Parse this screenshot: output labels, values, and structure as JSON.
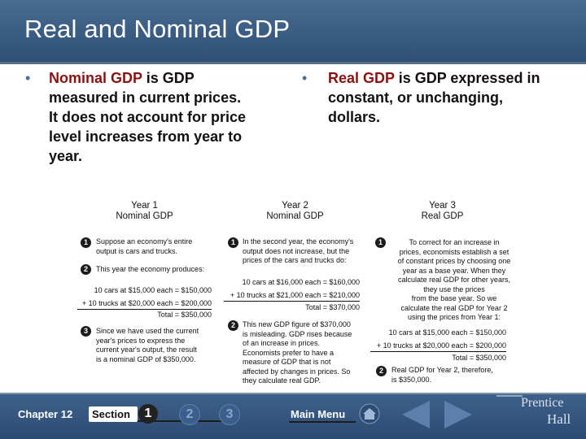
{
  "header": {
    "title": "Real and Nominal GDP"
  },
  "bullets": [
    {
      "term": "Nominal GDP",
      "text_line1": " is GDP",
      "lines": [
        "measured in current prices.",
        "It does not account for price",
        "level increases from year to",
        "year."
      ]
    },
    {
      "term": "Real GDP",
      "text_line1": " is GDP expressed in",
      "lines": [
        "constant, or unchanging,",
        "dollars."
      ]
    }
  ],
  "columns": {
    "col1": {
      "heading": [
        "Year 1",
        "Nominal GDP"
      ],
      "step1": [
        "Suppose an economy's entire",
        "output is cars and trucks."
      ],
      "step2": "This year the economy produces:",
      "calc1": "10 cars at $15,000 each = $150,000",
      "calc2": "+ 10 trucks at $20,000 each = $200,000",
      "total": "Total = $350,000",
      "step3": [
        "Since we have used the current",
        "year's prices to express the",
        "current year's output, the result",
        "is a nominal GDP of $350,000."
      ]
    },
    "col2": {
      "heading": [
        "Year 2",
        "Nominal GDP"
      ],
      "step1": [
        "In the second year, the economy's",
        "output does not increase, but the",
        "prices of the cars and trucks do:"
      ],
      "calc1": "10 cars at $16,000 each = $160,000",
      "calc2": "+ 10 trucks at $21,000 each = $210,000",
      "total": "Total = $370,000",
      "step2": [
        "This new GDP figure of $370,000",
        "is misleading. GDP rises because",
        "of an increase in prices.",
        "Economists prefer to have a",
        "measure of GDP that is not",
        "affected by changes in prices. So",
        "they calculate real GDP."
      ]
    },
    "col3": {
      "heading": [
        "Year 3",
        "Real GDP"
      ],
      "step1": [
        "To correct for an increase in",
        "prices, economists establish a set",
        "of constant prices by choosing one",
        "year as a base year. When they",
        "calculate real GDP for other years,",
        "they use the prices",
        "from the base year. So we",
        "calculate the real GDP for Year 2",
        "using the prices from Year 1:"
      ],
      "calc1": "10 cars at $15,000 each = $150,000",
      "calc2": "+ 10 trucks at $20,000 each = $200,000",
      "total": "Total = $350,000",
      "step2": [
        "Real GDP for Year 2, therefore,",
        "is $350,000."
      ]
    }
  },
  "step_numbers": [
    "1",
    "2",
    "3"
  ],
  "footer": {
    "chapter": "Chapter 12",
    "section_label": "Section",
    "sections": [
      "1",
      "2",
      "3"
    ],
    "main_menu": "Main Menu",
    "brand_line1": "Prentice",
    "brand_line2": "Hall"
  },
  "colors": {
    "header_bg": "#3d5f86",
    "accent_red": "#8b1010",
    "bullet_blue": "#4a6f98"
  }
}
